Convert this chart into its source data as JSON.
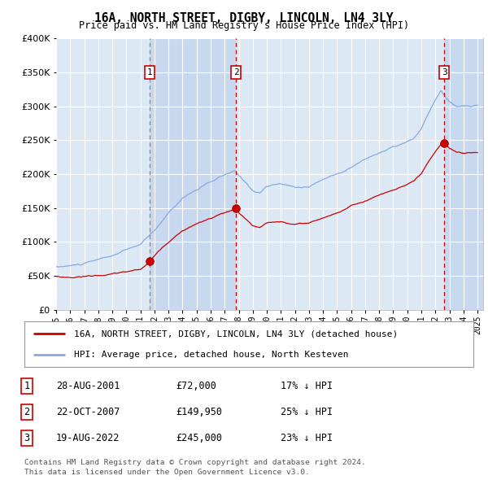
{
  "title": "16A, NORTH STREET, DIGBY, LINCOLN, LN4 3LY",
  "subtitle": "Price paid vs. HM Land Registry's House Price Index (HPI)",
  "legend_line1": "16A, NORTH STREET, DIGBY, LINCOLN, LN4 3LY (detached house)",
  "legend_line2": "HPI: Average price, detached house, North Kesteven",
  "footer1": "Contains HM Land Registry data © Crown copyright and database right 2024.",
  "footer2": "This data is licensed under the Open Government Licence v3.0.",
  "sale_color": "#cc0000",
  "hpi_color": "#88aadd",
  "vline_color_dashed_grey": "#888888",
  "vline_color_red": "#cc0000",
  "background_color": "#ffffff",
  "plot_bg_color": "#dde8f5",
  "plot_bg_shaded": "#c8d8ee",
  "grid_color": "#ffffff",
  "ylim": [
    0,
    400000
  ],
  "yticks": [
    0,
    50000,
    100000,
    150000,
    200000,
    250000,
    300000,
    350000,
    400000
  ],
  "sales": [
    {
      "date_x": 2001.65,
      "price": 72000,
      "label": "1"
    },
    {
      "date_x": 2007.81,
      "price": 149950,
      "label": "2"
    },
    {
      "date_x": 2022.63,
      "price": 245000,
      "label": "3"
    }
  ],
  "vlines": [
    {
      "x": 2001.65,
      "style": "dashed_grey"
    },
    {
      "x": 2007.81,
      "style": "dashed_red"
    },
    {
      "x": 2022.63,
      "style": "dashed_red"
    }
  ],
  "table_rows": [
    {
      "num": "1",
      "date": "28-AUG-2001",
      "price": "£72,000",
      "hpi": "17% ↓ HPI"
    },
    {
      "num": "2",
      "date": "22-OCT-2007",
      "price": "£149,950",
      "hpi": "25% ↓ HPI"
    },
    {
      "num": "3",
      "date": "19-AUG-2022",
      "price": "£245,000",
      "hpi": "23% ↓ HPI"
    }
  ],
  "xlim_left": 1995.3,
  "xlim_right": 2025.4
}
